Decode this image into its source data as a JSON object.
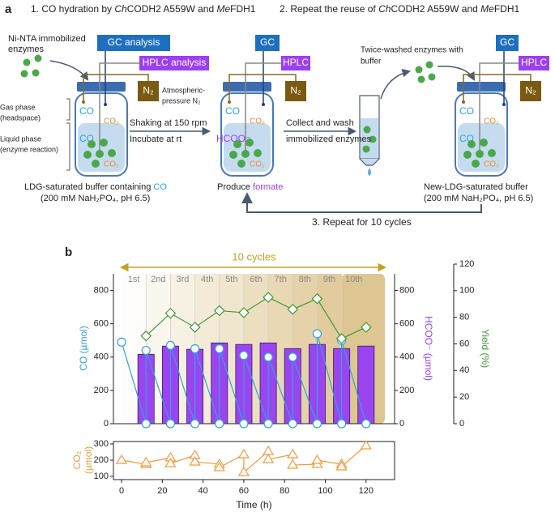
{
  "panel_a": {
    "label": "a",
    "step1": [
      "1. CO hydration by ",
      "Ch",
      "CODH2 A559W and ",
      "Me",
      "FDH1"
    ],
    "step2": [
      "2. Repeat the reuse of ",
      "Ch",
      "CODH2 A559W and ",
      "Me",
      "FDH1"
    ],
    "enzymes": [
      "Ni-NTA immobilized",
      "enzymes"
    ],
    "gas_phase": [
      "Gas phase",
      "(headspace)"
    ],
    "liquid_phase": [
      "Liquid phase",
      "(enzyme reaction)"
    ],
    "atmospheric": [
      "Atmospheric-",
      "pressure N₂"
    ],
    "step_shake": [
      "Shaking at 150 rpm",
      "Incubate at rt"
    ],
    "step_wash": [
      "Collect and wash",
      "immobilized enzymes"
    ],
    "washed": [
      "Twice-washed enzymes with",
      "buffer"
    ],
    "jars": [
      {
        "gc": "GC analysis",
        "hplc": "HPLC analysis",
        "n2": "N₂",
        "gas": [
          "CO",
          "CO₂"
        ],
        "liquid": [
          "CO",
          "CO₂"
        ],
        "caption": [
          "LDG-saturated buffer containing ",
          "CO"
        ],
        "caption2": "(200 mM NaH₂PO₄, pH 6.5)"
      },
      {
        "gc": "GC",
        "hplc": "HPLC",
        "n2": "N₂",
        "gas": [
          "CO",
          "CO₂"
        ],
        "liquid": [
          "HCOO⁻",
          "CO₂"
        ],
        "caption": [
          "Produce ",
          "formate"
        ]
      },
      {
        "gc": "GC",
        "hplc": "HPLC",
        "n2": "N₂",
        "gas": [
          "CO",
          "CO₂"
        ],
        "liquid": [
          "CO",
          "CO₂"
        ],
        "caption": [
          "New-LDG-saturated buffer"
        ],
        "caption2": "(200 mM NaH₂PO₄, pH 6.5)"
      }
    ],
    "repeat": "3. Repeat for 10 cycles"
  },
  "panel_b_label": "b",
  "chart_data": [
    {
      "type": "combo",
      "cycles_label": "10 cycles",
      "cycle_labels": [
        "1st",
        "2nd",
        "3rd",
        "4th",
        "5th",
        "6th",
        "7th",
        "8th",
        "9th",
        "10th"
      ],
      "xlim": [
        -4,
        134
      ],
      "ylabel": "CO (µmol)",
      "ylim": [
        0,
        900
      ],
      "yticks": [
        0,
        200,
        400,
        600,
        800
      ],
      "y2label": "HCOO⁻ (µmol)",
      "y2lim": [
        0,
        900
      ],
      "y2ticks": [
        0,
        200,
        400,
        600,
        800
      ],
      "y3label": "Yield (%)",
      "y3lim": [
        0,
        120
      ],
      "y3ticks": [
        0,
        20,
        40,
        60,
        80,
        100,
        120
      ],
      "series": [
        {
          "type": "bar",
          "axis": "y2",
          "color": "#9b45f0",
          "x": [
            12,
            24,
            36,
            48,
            60,
            72,
            84,
            96,
            108,
            120
          ],
          "values": [
            417,
            466,
            447,
            485,
            476,
            485,
            451,
            476,
            451,
            466
          ]
        },
        {
          "type": "line",
          "axis": "y",
          "color": "#2fa3e0",
          "x": [
            0,
            12,
            12,
            24,
            24,
            36,
            36,
            48,
            48,
            60,
            60,
            72,
            72,
            84,
            84,
            96,
            96,
            108,
            108,
            120
          ],
          "values": [
            490,
            0,
            440,
            0,
            470,
            0,
            450,
            0,
            450,
            0,
            410,
            0,
            400,
            0,
            400,
            0,
            540,
            0,
            500,
            0
          ]
        },
        {
          "type": "line",
          "axis": "y3",
          "color": "#3f9a3a",
          "x": [
            12,
            24,
            36,
            48,
            60,
            72,
            84,
            96,
            108,
            120
          ],
          "values": [
            66,
            83,
            72.5,
            85,
            83.5,
            95,
            86,
            94,
            64,
            72.5
          ]
        }
      ]
    },
    {
      "type": "line",
      "ylabel": [
        "CO₂",
        "(µmol)"
      ],
      "xlabel": "Time (h)",
      "xlim": [
        -4,
        134
      ],
      "xticks": [
        0,
        20,
        40,
        60,
        80,
        100,
        120
      ],
      "ylim": [
        80,
        315
      ],
      "yticks": [
        100,
        200,
        300
      ],
      "series": [
        {
          "color": "#f39a3c",
          "x": [
            0,
            12,
            12,
            24,
            24,
            36,
            36,
            48,
            48,
            60,
            60,
            72,
            72,
            84,
            84,
            96,
            96,
            108,
            108,
            120
          ],
          "values": [
            200,
            175,
            185,
            215,
            180,
            230,
            190,
            175,
            155,
            235,
            125,
            255,
            205,
            235,
            170,
            175,
            200,
            175,
            160,
            290
          ]
        }
      ]
    }
  ]
}
